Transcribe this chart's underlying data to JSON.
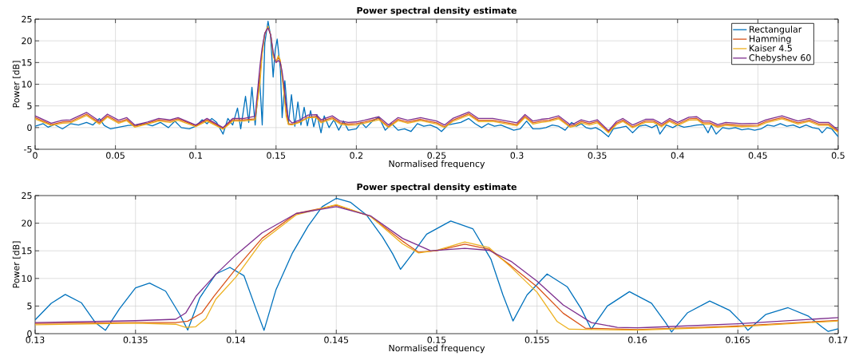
{
  "chart_data": [
    {
      "type": "line",
      "title": "Power spectral density estimate",
      "xlabel": "Normalised frequency",
      "ylabel": "Power [dB]",
      "xlim": [
        0,
        0.5
      ],
      "xticks": [
        0,
        0.05,
        0.1,
        0.15,
        0.2,
        0.25,
        0.3,
        0.35,
        0.4,
        0.45,
        0.5
      ],
      "ylim": [
        -5,
        25
      ],
      "yticks": [
        -5,
        0,
        5,
        10,
        15,
        20,
        25
      ],
      "grid": true,
      "legend": "top right",
      "marker": "none",
      "line_style": "solid",
      "x": [
        0,
        0.01,
        0.017,
        0.022,
        0.032,
        0.04,
        0.045,
        0.052,
        0.057,
        0.062,
        0.07,
        0.077,
        0.084,
        0.089,
        0.1,
        0.107,
        0.117,
        0.123,
        0.13,
        0.137,
        0.14,
        0.1413,
        0.143,
        0.145,
        0.1467,
        0.1483,
        0.15,
        0.1514,
        0.1526,
        0.1537,
        0.155,
        0.1563,
        0.1577,
        0.16,
        0.165,
        0.17,
        0.175,
        0.178,
        0.185,
        0.19,
        0.195,
        0.2,
        0.205,
        0.214,
        0.22,
        0.226,
        0.232,
        0.24,
        0.25,
        0.255,
        0.26,
        0.27,
        0.276,
        0.285,
        0.3,
        0.305,
        0.31,
        0.315,
        0.32,
        0.326,
        0.333,
        0.336,
        0.34,
        0.345,
        0.35,
        0.357,
        0.362,
        0.366,
        0.372,
        0.38,
        0.385,
        0.39,
        0.395,
        0.4,
        0.407,
        0.412,
        0.416,
        0.42,
        0.425,
        0.43,
        0.44,
        0.45,
        0.455,
        0.465,
        0.47,
        0.475,
        0.482,
        0.488,
        0.494,
        0.5
      ],
      "series": [
        {
          "name": "Rectangular",
          "color": "#0072bd",
          "x": [
            0,
            0.005,
            0.008,
            0.012,
            0.017,
            0.022,
            0.027,
            0.032,
            0.036,
            0.04,
            0.043,
            0.047,
            0.052,
            0.058,
            0.063,
            0.068,
            0.073,
            0.078,
            0.083,
            0.087,
            0.091,
            0.096,
            0.1,
            0.104,
            0.107,
            0.11,
            0.113,
            0.117,
            0.12,
            0.123,
            0.126,
            0.128,
            0.131,
            0.133,
            0.135,
            0.137,
            0.1397,
            0.1414,
            0.143,
            0.145,
            0.1465,
            0.1482,
            0.1495,
            0.1507,
            0.1527,
            0.1538,
            0.1555,
            0.1577,
            0.1596,
            0.1617,
            0.1636,
            0.1655,
            0.1675,
            0.1695,
            0.1715,
            0.1735,
            0.1755,
            0.178,
            0.18,
            0.183,
            0.186,
            0.189,
            0.192,
            0.195,
            0.2,
            0.203,
            0.206,
            0.21,
            0.214,
            0.218,
            0.222,
            0.226,
            0.23,
            0.234,
            0.238,
            0.242,
            0.246,
            0.25,
            0.253,
            0.257,
            0.261,
            0.265,
            0.27,
            0.274,
            0.278,
            0.282,
            0.286,
            0.29,
            0.294,
            0.298,
            0.302,
            0.306,
            0.31,
            0.314,
            0.318,
            0.322,
            0.326,
            0.33,
            0.334,
            0.337,
            0.34,
            0.343,
            0.346,
            0.349,
            0.352,
            0.357,
            0.36,
            0.364,
            0.368,
            0.372,
            0.376,
            0.38,
            0.384,
            0.387,
            0.389,
            0.393,
            0.397,
            0.4,
            0.404,
            0.408,
            0.412,
            0.416,
            0.419,
            0.421,
            0.424,
            0.428,
            0.432,
            0.436,
            0.44,
            0.444,
            0.448,
            0.452,
            0.456,
            0.46,
            0.464,
            0.468,
            0.472,
            0.476,
            0.48,
            0.484,
            0.488,
            0.49,
            0.493,
            0.496,
            0.5
          ],
          "values": [
            0.3,
            0.9,
            0.1,
            0.7,
            -0.3,
            0.9,
            0.6,
            1.2,
            0.6,
            2.1,
            0.5,
            -0.3,
            0.1,
            0.5,
            0.6,
            0.9,
            0.4,
            1.2,
            0,
            1.5,
            0,
            -0.3,
            0.3,
            1.8,
            0.9,
            2.1,
            1.2,
            -1.5,
            2.1,
            0.6,
            4.5,
            -0.3,
            7.2,
            1.2,
            9.3,
            0.6,
            12.0,
            0.6,
            19.5,
            24.5,
            21.5,
            11.65,
            18.0,
            20.4,
            13.5,
            2.3,
            10.8,
            0.8,
            7.6,
            0.3,
            5.9,
            0.6,
            4.7,
            0.4,
            3.9,
            0.2,
            3.0,
            -1.2,
            2.7,
            0,
            1.8,
            -0.6,
            1.5,
            -0.6,
            -0.3,
            1.2,
            0,
            1.5,
            2.4,
            -0.6,
            0.9,
            -0.6,
            -0.3,
            -0.9,
            0.9,
            0.3,
            0.6,
            0,
            -0.9,
            0.6,
            0.9,
            1.2,
            2.1,
            0.9,
            0,
            0.9,
            0.3,
            0.6,
            0,
            -0.6,
            -0.3,
            1.5,
            -0.3,
            -0.3,
            0,
            0.6,
            0.3,
            -0.6,
            1.2,
            0.3,
            0.9,
            0,
            -0.3,
            0,
            -0.6,
            -2.1,
            -0.3,
            0,
            0.3,
            -1.2,
            0.3,
            0.6,
            0,
            0.6,
            -1.5,
            0.6,
            0,
            0.6,
            0.1,
            0.3,
            0.6,
            0.7,
            -1.2,
            0.5,
            -1.5,
            0,
            -0.3,
            0,
            -0.5,
            -0.3,
            -0.6,
            -0.3,
            0.6,
            0.3,
            0.9,
            0.3,
            0.6,
            0,
            0.6,
            0,
            -0.3,
            -1.2,
            0,
            -0.3,
            -2.1
          ]
        },
        {
          "name": "Hamming",
          "color": "#d95319",
          "values": [
            2.3,
            0.7,
            1.3,
            1.4,
            3.1,
            1.1,
            2.7,
            1.3,
            1.9,
            0.3,
            1.0,
            1.8,
            1.5,
            2.0,
            0.4,
            1.8,
            -0.2,
            1.8,
            1.8,
            2.0,
            11.75,
            17.25,
            21.75,
            23.25,
            21.25,
            16.75,
            15.0,
            16.2,
            15.3,
            12.3,
            8.5,
            3.7,
            0.9,
            0.75,
            1.4,
            2.4,
            2.6,
            1.4,
            2.3,
            1.1,
            0.8,
            0.9,
            1.3,
            2.1,
            0.2,
            1.9,
            1.3,
            1.9,
            1.1,
            0.2,
            1.7,
            3.2,
            1.7,
            1.7,
            0.7,
            2.6,
            1.1,
            1.5,
            1.7,
            2.3,
            0.3,
            0.6,
            1.4,
            0.9,
            1.4,
            -1.0,
            1.0,
            1.7,
            0.2,
            1.5,
            1.5,
            0.5,
            1.7,
            0.8,
            2.0,
            2.1,
            1.1,
            1.1,
            0.3,
            0.8,
            0.5,
            0.6,
            1.4,
            2.3,
            1.7,
            1.1,
            1.7,
            0.8,
            0.8,
            -0.9
          ]
        },
        {
          "name": "Kaiser 4.5",
          "color": "#edb120",
          "values": [
            2.0,
            0.5,
            1.0,
            1.1,
            2.8,
            0.8,
            2.4,
            1.0,
            1.6,
            0.1,
            0.8,
            1.5,
            1.2,
            1.7,
            0.2,
            1.5,
            -0.4,
            1.5,
            1.5,
            1.8,
            10.25,
            16.75,
            21.5,
            23.35,
            21.25,
            16.25,
            15.1,
            16.6,
            15.6,
            12.05,
            7.5,
            2.6,
            0.7,
            0.65,
            1.25,
            2.3,
            2.3,
            1.1,
            2.0,
            0.8,
            0.5,
            0.6,
            1.0,
            1.8,
            0.0,
            1.6,
            1.0,
            1.6,
            0.8,
            0.0,
            1.4,
            2.9,
            1.4,
            1.4,
            0.4,
            2.3,
            0.8,
            1.2,
            1.4,
            2.0,
            0.1,
            0.3,
            1.1,
            0.6,
            1.1,
            -1.2,
            0.7,
            1.4,
            0.0,
            1.2,
            1.2,
            0.2,
            1.4,
            0.5,
            1.7,
            1.8,
            0.8,
            0.8,
            0.1,
            0.5,
            0.2,
            0.3,
            1.1,
            2.0,
            1.4,
            0.8,
            1.4,
            0.5,
            0.5,
            -1.1
          ]
        },
        {
          "name": "Chebyshev 60",
          "color": "#7e2f8e",
          "values": [
            2.7,
            1.0,
            1.7,
            1.8,
            3.5,
            1.5,
            3.1,
            1.7,
            2.3,
            0.6,
            1.3,
            2.1,
            1.8,
            2.3,
            0.6,
            2.1,
            0.0,
            2.1,
            2.1,
            2.6,
            14.25,
            18.25,
            21.75,
            23.0,
            21.35,
            17.25,
            15.0,
            15.45,
            15.1,
            13.1,
            9.5,
            5.2,
            2.0,
            1.05,
            1.8,
            2.9,
            3.0,
            1.8,
            2.7,
            1.5,
            1.2,
            1.3,
            1.7,
            2.5,
            0.6,
            2.3,
            1.7,
            2.3,
            1.5,
            0.6,
            2.1,
            3.6,
            2.1,
            2.1,
            1.1,
            3.0,
            1.5,
            1.9,
            2.1,
            2.7,
            0.7,
            1.0,
            1.8,
            1.3,
            1.8,
            -0.7,
            1.4,
            2.1,
            0.6,
            1.9,
            1.9,
            0.9,
            2.1,
            1.2,
            2.4,
            2.5,
            1.5,
            1.5,
            0.7,
            1.2,
            0.9,
            1.0,
            1.8,
            2.7,
            2.1,
            1.5,
            2.1,
            1.2,
            1.2,
            -0.6
          ]
        }
      ]
    },
    {
      "type": "line",
      "title": "Power spectral density estimate",
      "xlabel": "Normalised frequency",
      "ylabel": "Power [dB]",
      "xlim": [
        0.13,
        0.17
      ],
      "xticks": [
        0.13,
        0.135,
        0.14,
        0.145,
        0.15,
        0.155,
        0.16,
        0.165,
        0.17
      ],
      "ylim": [
        0,
        25
      ],
      "yticks": [
        0,
        5,
        10,
        15,
        20,
        25
      ],
      "grid": true,
      "marker": "none",
      "line_style": "solid",
      "series": [
        {
          "color": "#0072bd",
          "x": [
            0.13,
            0.1308,
            0.1315,
            0.1323,
            0.133,
            0.1335,
            0.1342,
            0.135,
            0.1357,
            0.1365,
            0.1372,
            0.1376,
            0.1382,
            0.139,
            0.1397,
            0.1404,
            0.141,
            0.1414,
            0.142,
            0.1428,
            0.1436,
            0.1443,
            0.145,
            0.1457,
            0.1465,
            0.1473,
            0.1478,
            0.1482,
            0.1488,
            0.1495,
            0.1507,
            0.1518,
            0.1527,
            0.1533,
            0.1538,
            0.1545,
            0.1555,
            0.1565,
            0.1572,
            0.1577,
            0.1585,
            0.1596,
            0.1607,
            0.1614,
            0.1617,
            0.1625,
            0.1636,
            0.1646,
            0.1652,
            0.1655,
            0.1664,
            0.1675,
            0.1685,
            0.1692,
            0.1695,
            0.17
          ],
          "values": [
            2.5,
            5.5,
            7.1,
            5.6,
            2.0,
            0.6,
            4.5,
            8.3,
            9.15,
            7.7,
            3.5,
            0.65,
            6.5,
            10.8,
            12.0,
            10.5,
            4.5,
            0.6,
            8.0,
            14.5,
            19.5,
            23.0,
            24.5,
            23.8,
            21.5,
            17.5,
            14.5,
            11.65,
            14.5,
            18.0,
            20.4,
            19.0,
            13.5,
            7.0,
            2.3,
            7.0,
            10.8,
            8.5,
            4.5,
            0.8,
            5.0,
            7.6,
            5.5,
            2.0,
            0.3,
            3.8,
            5.9,
            4.2,
            2.0,
            0.6,
            3.5,
            4.7,
            3.2,
            1.2,
            0.4,
            0.9
          ]
        },
        {
          "color": "#d95319",
          "x": [
            0.13,
            0.135,
            0.137,
            0.1376,
            0.1383,
            0.1389,
            0.14,
            0.1413,
            0.143,
            0.145,
            0.1467,
            0.1483,
            0.1491,
            0.15,
            0.1514,
            0.1526,
            0.1537,
            0.155,
            0.1563,
            0.1574,
            0.16,
            0.165,
            0.17
          ],
          "values": [
            1.85,
            2.0,
            2.0,
            2.25,
            3.75,
            6.75,
            11.75,
            17.25,
            21.75,
            23.25,
            21.25,
            16.75,
            14.75,
            15.0,
            16.2,
            15.3,
            12.3,
            8.5,
            3.7,
            1.0,
            0.75,
            1.4,
            2.4
          ]
        },
        {
          "color": "#edb120",
          "x": [
            0.13,
            0.135,
            0.137,
            0.1375,
            0.138,
            0.1385,
            0.139,
            0.14,
            0.1413,
            0.143,
            0.145,
            0.1467,
            0.1483,
            0.1491,
            0.15,
            0.1514,
            0.1526,
            0.1537,
            0.155,
            0.156,
            0.1566,
            0.16,
            0.165,
            0.17
          ],
          "values": [
            1.6,
            1.9,
            1.7,
            1.15,
            1.25,
            2.75,
            6.25,
            10.25,
            16.75,
            21.5,
            23.35,
            21.25,
            16.25,
            14.6,
            15.1,
            16.6,
            15.6,
            12.05,
            7.5,
            2.2,
            0.8,
            0.65,
            1.25,
            2.3
          ]
        },
        {
          "color": "#7e2f8e",
          "x": [
            0.13,
            0.135,
            0.137,
            0.1375,
            0.138,
            0.139,
            0.14,
            0.1413,
            0.143,
            0.145,
            0.1467,
            0.1483,
            0.1497,
            0.1514,
            0.1526,
            0.1537,
            0.155,
            0.1563,
            0.1577,
            0.159,
            0.16,
            0.165,
            0.17
          ],
          "values": [
            2.0,
            2.35,
            2.6,
            3.75,
            6.75,
            10.75,
            14.25,
            18.25,
            21.75,
            23.0,
            21.35,
            17.25,
            15.0,
            15.45,
            15.1,
            13.1,
            9.5,
            5.2,
            2.0,
            1.15,
            1.05,
            1.8,
            2.9
          ]
        }
      ]
    }
  ]
}
